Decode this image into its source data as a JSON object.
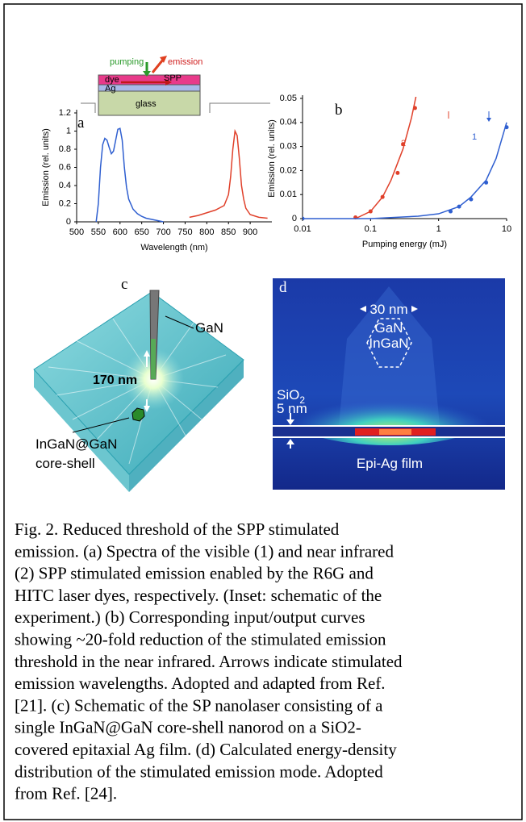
{
  "chart_data": [
    {
      "type": "line",
      "label": "a",
      "x_label": "Wavelength (nm)",
      "y_label": "Emission (rel. units)",
      "xlim": [
        500,
        950
      ],
      "xticks": [
        500,
        550,
        600,
        650,
        700,
        750,
        800,
        850,
        900
      ],
      "ylim": [
        0,
        1.2
      ],
      "yticks": [
        0,
        0.2,
        0.4,
        0.6,
        0.8,
        1,
        1.2
      ],
      "series": [
        {
          "name": "1",
          "color": "#2f5fd0",
          "x": [
            545,
            550,
            555,
            560,
            565,
            570,
            575,
            580,
            585,
            590,
            595,
            600,
            605,
            610,
            615,
            620,
            630,
            640,
            650,
            660,
            680,
            700
          ],
          "values": [
            0,
            0.2,
            0.6,
            0.85,
            0.92,
            0.9,
            0.82,
            0.75,
            0.78,
            0.9,
            1.02,
            1.03,
            0.9,
            0.6,
            0.38,
            0.25,
            0.14,
            0.09,
            0.06,
            0.04,
            0.02,
            0
          ]
        },
        {
          "name": "2",
          "color": "#e0402a",
          "x": [
            760,
            780,
            800,
            820,
            840,
            850,
            855,
            860,
            865,
            870,
            875,
            880,
            885,
            890,
            900,
            920,
            940
          ],
          "values": [
            0.05,
            0.07,
            0.1,
            0.13,
            0.18,
            0.3,
            0.5,
            0.8,
            1.0,
            0.95,
            0.7,
            0.4,
            0.25,
            0.15,
            0.08,
            0.05,
            0.04
          ]
        }
      ],
      "inset": {
        "pumping": "pumping",
        "emission": "emission",
        "dye": "dye",
        "spp": "SPP",
        "ag": "Ag",
        "glass": "glass"
      }
    },
    {
      "type": "scatter",
      "label": "b",
      "x_label": "Pumping energy (mJ)",
      "y_label": "Emission (rel. units)",
      "log_x": true,
      "xlim": [
        0.01,
        10
      ],
      "xticks": [
        0.01,
        0.1,
        1,
        10
      ],
      "ylim": [
        0,
        0.05
      ],
      "yticks": [
        0,
        0.01,
        0.02,
        0.03,
        0.04,
        0.05
      ],
      "series": [
        {
          "name": "2",
          "color": "#e0402a",
          "x": [
            0.06,
            0.1,
            0.15,
            0.25,
            0.3,
            0.45
          ],
          "values": [
            0.0005,
            0.003,
            0.009,
            0.019,
            0.031,
            0.046
          ],
          "fit_x": [
            0.06,
            0.1,
            0.15,
            0.2,
            0.3,
            0.4,
            0.5
          ],
          "fit_values": [
            0,
            0.003,
            0.009,
            0.016,
            0.029,
            0.042,
            0.055
          ]
        },
        {
          "name": "1",
          "color": "#2f5fd0",
          "x": [
            0.01,
            1.5,
            2,
            3,
            5,
            10
          ],
          "values": [
            0,
            0.003,
            0.005,
            0.008,
            0.015,
            0.038
          ],
          "fit_x": [
            0.01,
            0.1,
            0.5,
            1,
            2,
            3,
            5,
            7,
            10
          ],
          "fit_values": [
            0,
            0,
            0.001,
            0.002,
            0.005,
            0.009,
            0.016,
            0.025,
            0.04
          ]
        }
      ]
    }
  ],
  "panel_c": {
    "label": "c",
    "gan": "GaN",
    "length": "170 nm",
    "core": "InGaN@GaN",
    "shell": "core-shell"
  },
  "panel_d": {
    "label": "d",
    "width": "30 nm",
    "gan": "GaN",
    "ingan": "InGaN",
    "sio": "SiO",
    "sio_sub": "2",
    "thickness": "5 nm",
    "film": "Epi-Ag film"
  },
  "caption": [
    "Fig. 2. Reduced threshold of the SPP stimulated",
    "emission. (a) Spectra of the visible (1) and near infrared",
    "(2) SPP stimulated emission enabled by the R6G and",
    "HITC laser dyes, respectively. (Inset: schematic of the",
    "experiment.) (b) Corresponding input/output curves",
    "showing ~20-fold reduction of the stimulated emission",
    "threshold in the near infrared. Arrows indicate stimulated",
    "emission wavelengths. Adopted and adapted from Ref.",
    "[21]. (c) Schematic of the SP nanolaser consisting of a",
    "single InGaN@GaN core-shell nanorod on a SiO2-",
    "covered epitaxial Ag film. (d) Calculated energy-density",
    "distribution of the stimulated emission mode. Adopted",
    "from Ref. [24]."
  ]
}
